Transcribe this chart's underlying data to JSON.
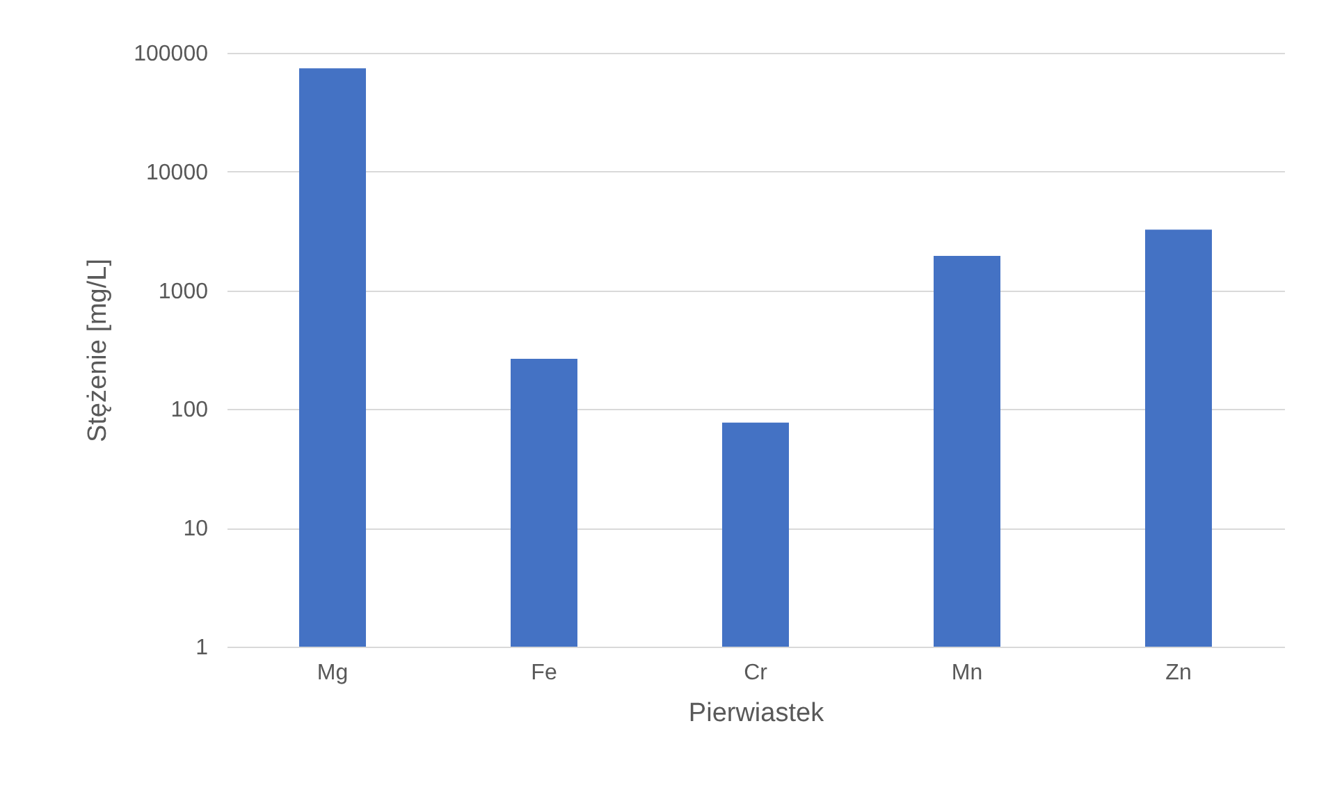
{
  "chart_data": {
    "type": "bar",
    "xlabel": "Pierwiastek",
    "ylabel": "Stężenie [mg/L]",
    "categories": [
      "Mg",
      "Fe",
      "Cr",
      "Mn",
      "Zn"
    ],
    "series": [
      {
        "color": "#4472c4",
        "values": [
          74000,
          265,
          77,
          1950,
          3250
        ]
      }
    ],
    "log": true,
    "ylim": [
      1,
      100000
    ],
    "yticks": [
      1,
      10,
      100,
      1000,
      10000,
      100000
    ],
    "grid": "y",
    "legend": false
  }
}
